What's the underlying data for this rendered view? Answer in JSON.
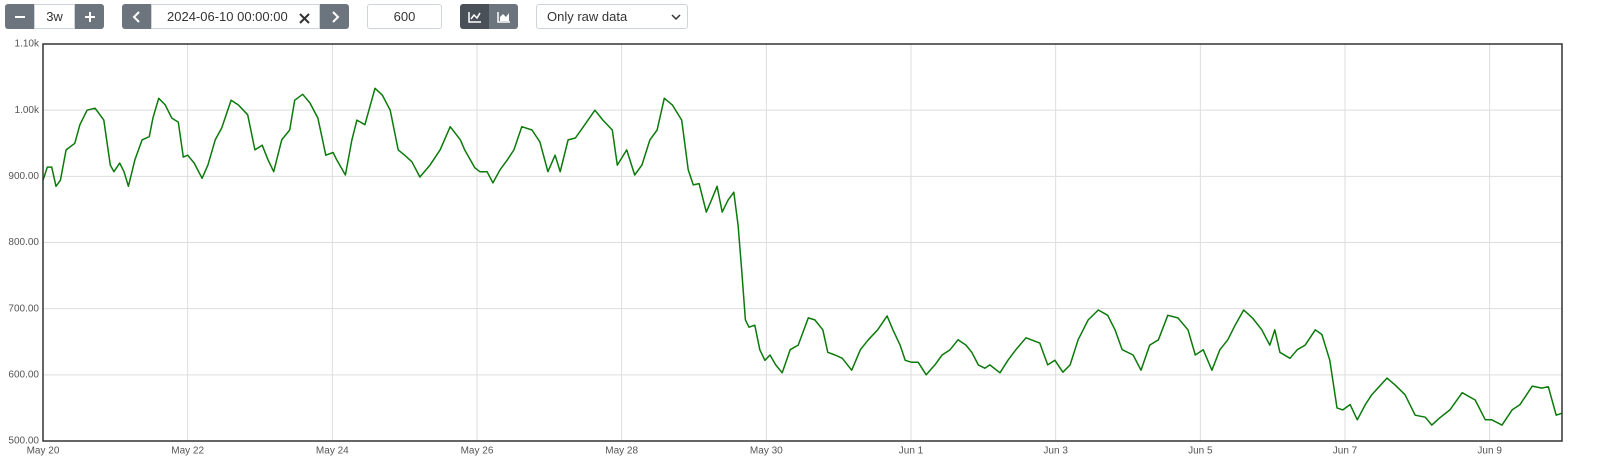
{
  "toolbar": {
    "range": "3w",
    "end_time": "2024-06-10 00:00:00",
    "resolution": "600",
    "mode": "Only raw data"
  },
  "chart_data": {
    "type": "line",
    "color": "#0b7a0b",
    "grid": true,
    "xlim": [
      0,
      21
    ],
    "ylim": [
      500,
      1100
    ],
    "xticks": [
      {
        "value": 0,
        "label": "May 20"
      },
      {
        "value": 2,
        "label": "May 22"
      },
      {
        "value": 4,
        "label": "May 24"
      },
      {
        "value": 6,
        "label": "May 26"
      },
      {
        "value": 8,
        "label": "May 28"
      },
      {
        "value": 10,
        "label": "May 30"
      },
      {
        "value": 12,
        "label": "Jun 1"
      },
      {
        "value": 14,
        "label": "Jun 3"
      },
      {
        "value": 16,
        "label": "Jun 5"
      },
      {
        "value": 18,
        "label": "Jun 7"
      },
      {
        "value": 20,
        "label": "Jun 9"
      }
    ],
    "yticks": [
      {
        "value": 500,
        "label": "500.00"
      },
      {
        "value": 600,
        "label": "600.00"
      },
      {
        "value": 700,
        "label": "700.00"
      },
      {
        "value": 800,
        "label": "800.00"
      },
      {
        "value": 900,
        "label": "900.00"
      },
      {
        "value": 1000,
        "label": "1.00k"
      },
      {
        "value": 1100,
        "label": "1.10k"
      }
    ],
    "x": [
      0,
      0.06,
      0.12,
      0.18,
      0.24,
      0.32,
      0.44,
      0.51,
      0.61,
      0.72,
      0.84,
      0.93,
      0.98,
      1.06,
      1.12,
      1.18,
      1.27,
      1.37,
      1.47,
      1.52,
      1.6,
      1.69,
      1.78,
      1.87,
      1.94,
      2.0,
      2.09,
      2.2,
      2.28,
      2.38,
      2.47,
      2.6,
      2.7,
      2.83,
      2.93,
      3.03,
      3.11,
      3.19,
      3.3,
      3.41,
      3.48,
      3.59,
      3.69,
      3.8,
      3.91,
      4.01,
      4.06,
      4.18,
      4.27,
      4.34,
      4.45,
      4.59,
      4.69,
      4.8,
      4.91,
      5.0,
      5.1,
      5.21,
      5.35,
      5.49,
      5.63,
      5.77,
      5.83,
      5.97,
      6.04,
      6.14,
      6.22,
      6.32,
      6.42,
      6.51,
      6.62,
      6.76,
      6.87,
      6.98,
      7.08,
      7.15,
      7.26,
      7.36,
      7.49,
      7.63,
      7.74,
      7.87,
      7.94,
      8.07,
      8.18,
      8.28,
      8.39,
      8.49,
      8.59,
      8.7,
      8.83,
      8.92,
      8.99,
      9.07,
      9.17,
      9.24,
      9.32,
      9.39,
      9.47,
      9.55,
      9.61,
      9.66,
      9.71,
      9.76,
      9.84,
      9.91,
      9.98,
      10.05,
      10.13,
      10.22,
      10.33,
      10.44,
      10.58,
      10.67,
      10.78,
      10.85,
      10.95,
      11.05,
      11.18,
      11.3,
      11.41,
      11.54,
      11.67,
      11.75,
      11.85,
      11.92,
      12.01,
      12.1,
      12.21,
      12.33,
      12.43,
      12.54,
      12.65,
      12.76,
      12.84,
      12.93,
      13.02,
      13.09,
      13.23,
      13.34,
      13.45,
      13.59,
      13.78,
      13.89,
      13.99,
      14.1,
      14.2,
      14.31,
      14.45,
      14.59,
      14.72,
      14.82,
      14.92,
      15.07,
      15.18,
      15.3,
      15.42,
      15.55,
      15.69,
      15.83,
      15.93,
      16.04,
      16.16,
      16.27,
      16.38,
      16.48,
      16.6,
      16.72,
      16.85,
      16.96,
      17.03,
      17.1,
      17.24,
      17.34,
      17.45,
      17.59,
      17.68,
      17.79,
      17.89,
      17.97,
      18.07,
      18.17,
      18.28,
      18.37,
      18.58,
      18.69,
      18.83,
      18.97,
      19.11,
      19.2,
      19.31,
      19.45,
      19.62,
      19.8,
      19.94,
      20.03,
      20.17,
      20.31,
      20.42,
      20.59,
      20.72,
      20.81,
      20.92,
      21.0
    ],
    "values": [
      894,
      914,
      914,
      885,
      894,
      940,
      950,
      978,
      1000,
      1003,
      985,
      917,
      907,
      920,
      907,
      885,
      925,
      955,
      960,
      988,
      1018,
      1008,
      988,
      982,
      929,
      932,
      920,
      897,
      917,
      955,
      973,
      1015,
      1008,
      993,
      940,
      947,
      925,
      907,
      955,
      970,
      1015,
      1024,
      1011,
      988,
      932,
      936,
      925,
      902,
      955,
      985,
      978,
      1033,
      1023,
      1000,
      940,
      932,
      922,
      899,
      917,
      940,
      975,
      955,
      940,
      913,
      907,
      907,
      890,
      910,
      925,
      940,
      975,
      970,
      952,
      907,
      932,
      907,
      955,
      958,
      978,
      1000,
      985,
      970,
      917,
      940,
      902,
      917,
      955,
      970,
      1018,
      1008,
      985,
      910,
      887,
      889,
      846,
      864,
      885,
      846,
      864,
      876,
      826,
      758,
      683,
      672,
      675,
      638,
      622,
      630,
      615,
      603,
      638,
      645,
      686,
      683,
      668,
      634,
      630,
      625,
      607,
      638,
      653,
      668,
      689,
      668,
      645,
      622,
      619,
      619,
      600,
      615,
      630,
      638,
      653,
      645,
      634,
      615,
      610,
      615,
      603,
      622,
      638,
      656,
      648,
      615,
      622,
      604,
      615,
      653,
      683,
      698,
      690,
      668,
      638,
      630,
      607,
      645,
      653,
      690,
      686,
      668,
      630,
      638,
      607,
      638,
      653,
      675,
      698,
      686,
      668,
      645,
      668,
      634,
      625,
      638,
      645,
      668,
      661,
      622,
      550,
      547,
      555,
      532,
      555,
      570,
      595,
      585,
      570,
      539,
      536,
      524,
      535,
      547,
      573,
      562,
      532,
      532,
      524,
      547,
      555,
      583,
      580,
      582,
      539,
      542
    ]
  }
}
